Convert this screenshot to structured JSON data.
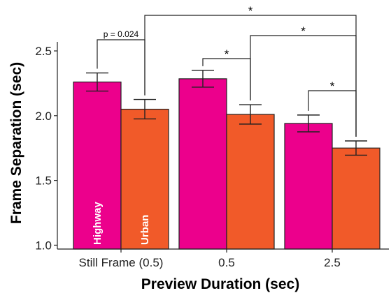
{
  "chart_data": {
    "type": "bar",
    "categories": [
      "Still Frame (0.5)",
      "0.5",
      "2.5"
    ],
    "series": [
      {
        "name": "Highway",
        "color": "#ec008c",
        "values": [
          2.26,
          2.285,
          1.94
        ],
        "err": [
          0.07,
          0.065,
          0.065
        ]
      },
      {
        "name": "Urban",
        "color": "#f15a29",
        "values": [
          2.05,
          2.01,
          1.75
        ],
        "err": [
          0.075,
          0.075,
          0.055
        ]
      }
    ],
    "xlabel": "Preview Duration (sec)",
    "ylabel": "Frame Separation (sec)",
    "ylim": [
      0.97,
      2.57
    ],
    "yticks": [
      "1.0",
      "1.5",
      "2.0",
      "2.5"
    ],
    "legend_placement": "inside-bars",
    "annotations": [
      {
        "label": "p = 0.024",
        "from": [
          0,
          0
        ],
        "to": [
          0,
          1
        ]
      },
      {
        "label": "*",
        "from": [
          1,
          0
        ],
        "to": [
          1,
          1
        ]
      },
      {
        "label": "*",
        "from": [
          2,
          0
        ],
        "to": [
          2,
          1
        ]
      },
      {
        "label": "*",
        "from": [
          1,
          1
        ],
        "to": [
          2,
          1
        ]
      },
      {
        "label": "*",
        "from": [
          0,
          1
        ],
        "to": [
          2,
          1
        ]
      }
    ]
  }
}
